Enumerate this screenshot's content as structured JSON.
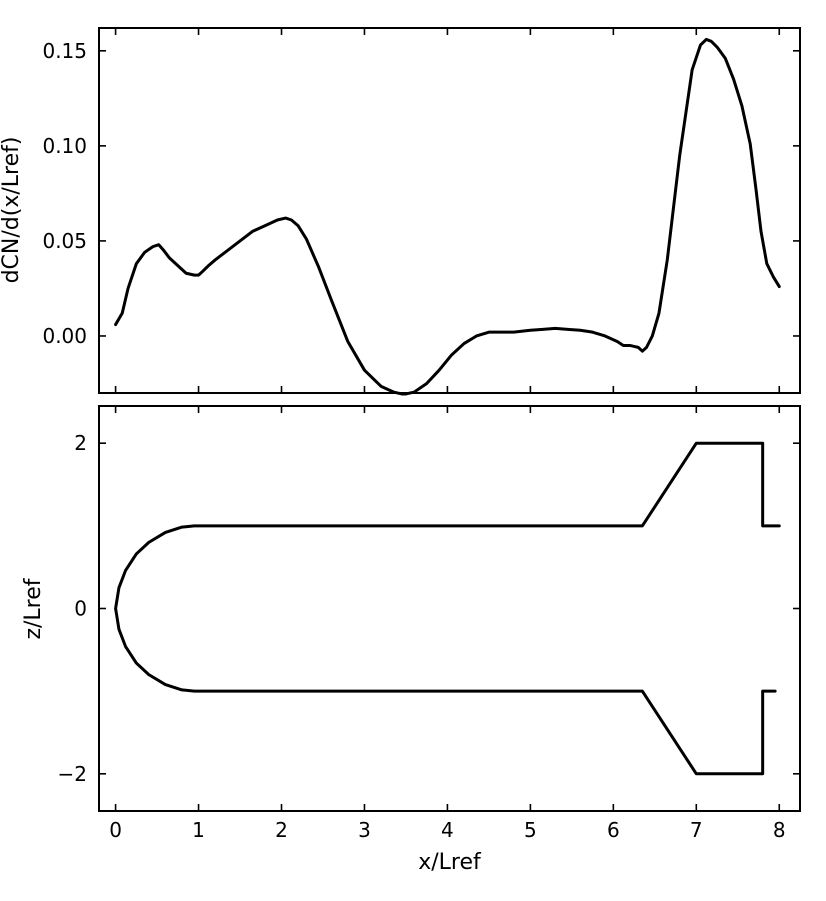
{
  "chart_data": [
    {
      "type": "line",
      "title": "",
      "xlabel": "",
      "ylabel": "dCN/d(x/Lref)",
      "xlim": [
        -0.2,
        8.25
      ],
      "ylim": [
        -0.03,
        0.162
      ],
      "xticks": [
        0,
        1,
        2,
        3,
        4,
        5,
        6,
        7,
        8
      ],
      "yticks": [
        0.0,
        0.05,
        0.1,
        0.15
      ],
      "ytick_labels": [
        "0.00",
        "0.05",
        "0.10",
        "0.15"
      ],
      "xtick_labels_shown": false,
      "grid": false,
      "series": [
        {
          "x": [
            0.0,
            0.08,
            0.15,
            0.25,
            0.35,
            0.45,
            0.52,
            0.58,
            0.65,
            0.75,
            0.85,
            0.95,
            1.0,
            1.05,
            1.12,
            1.2,
            1.35,
            1.5,
            1.65,
            1.8,
            1.95,
            2.05,
            2.12,
            2.2,
            2.3,
            2.45,
            2.6,
            2.8,
            3.0,
            3.2,
            3.35,
            3.45,
            3.5,
            3.6,
            3.75,
            3.9,
            4.05,
            4.2,
            4.35,
            4.5,
            4.6,
            4.8,
            5.0,
            5.15,
            5.3,
            5.45,
            5.6,
            5.75,
            5.9,
            6.05,
            6.12,
            6.2,
            6.3,
            6.35,
            6.4,
            6.47,
            6.55,
            6.65,
            6.8,
            6.95,
            7.05,
            7.12,
            7.18,
            7.25,
            7.35,
            7.45,
            7.55,
            7.65,
            7.72,
            7.78,
            7.85,
            7.93,
            8.0
          ],
          "y": [
            0.006,
            0.012,
            0.025,
            0.038,
            0.044,
            0.047,
            0.048,
            0.045,
            0.041,
            0.037,
            0.033,
            0.032,
            0.032,
            0.034,
            0.037,
            0.04,
            0.045,
            0.05,
            0.055,
            0.058,
            0.061,
            0.062,
            0.061,
            0.058,
            0.051,
            0.036,
            0.019,
            -0.003,
            -0.018,
            -0.0265,
            -0.0295,
            -0.0305,
            -0.0305,
            -0.0295,
            -0.025,
            -0.018,
            -0.01,
            -0.004,
            0.0,
            0.002,
            0.002,
            0.002,
            0.003,
            0.0035,
            0.004,
            0.0035,
            0.003,
            0.002,
            0.0,
            -0.003,
            -0.005,
            -0.005,
            -0.006,
            -0.008,
            -0.006,
            0.0,
            0.012,
            0.04,
            0.095,
            0.14,
            0.153,
            0.156,
            0.155,
            0.152,
            0.146,
            0.135,
            0.121,
            0.101,
            0.077,
            0.055,
            0.038,
            0.031,
            0.026
          ]
        }
      ]
    },
    {
      "type": "line",
      "title": "",
      "xlabel": "x/Lref",
      "ylabel": "z/Lref",
      "xlim": [
        -0.2,
        8.25
      ],
      "ylim": [
        -2.45,
        2.45
      ],
      "xticks": [
        0,
        1,
        2,
        3,
        4,
        5,
        6,
        7,
        8
      ],
      "xtick_labels": [
        "0",
        "1",
        "2",
        "3",
        "4",
        "5",
        "6",
        "7",
        "8"
      ],
      "yticks": [
        -2,
        0,
        2
      ],
      "ytick_labels": [
        "−2",
        "0",
        "2"
      ],
      "grid": false,
      "series": [
        {
          "x": [
            8.0,
            7.8,
            7.8,
            7.0,
            6.35,
            0.95,
            0.8,
            0.6,
            0.4,
            0.25,
            0.12,
            0.04,
            0.0,
            0.04,
            0.12,
            0.25,
            0.4,
            0.6,
            0.8,
            0.95,
            6.35,
            7.0,
            7.8,
            7.8,
            7.95
          ],
          "y": [
            1.0,
            1.0,
            2.0,
            2.0,
            1.0,
            1.0,
            0.985,
            0.92,
            0.8,
            0.66,
            0.46,
            0.25,
            0.0,
            -0.25,
            -0.46,
            -0.66,
            -0.8,
            -0.92,
            -0.985,
            -1.0,
            -1.0,
            -2.0,
            -2.0,
            -1.0,
            -1.0
          ]
        }
      ]
    }
  ]
}
